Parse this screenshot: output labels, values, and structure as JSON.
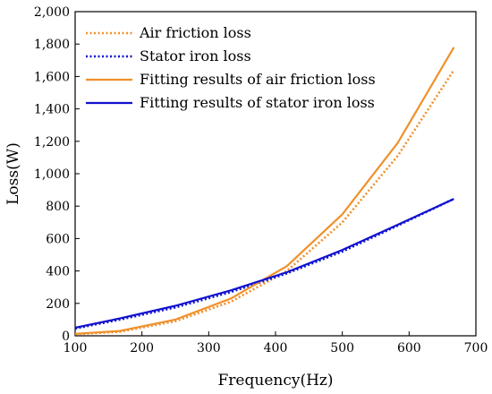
{
  "chart_data": {
    "type": "line",
    "title": "",
    "xlabel": "Frequency(Hz)",
    "ylabel": "Loss(W)",
    "xlim": [
      100,
      700
    ],
    "ylim": [
      0,
      2000
    ],
    "x_ticks": [
      100,
      200,
      300,
      400,
      500,
      600,
      700
    ],
    "y_ticks": [
      0,
      200,
      400,
      600,
      800,
      1000,
      1200,
      1400,
      1600,
      1800,
      2000
    ],
    "y_tick_labels": [
      "0",
      "200",
      "400",
      "600",
      "800",
      "1,000",
      "1,200",
      "1,400",
      "1,600",
      "1,800",
      "2,000"
    ],
    "legend_position": "top-left",
    "grid": false,
    "series": [
      {
        "name": "Air friction loss",
        "color": "#F0902A",
        "style": "dotted",
        "x": [
          100,
          167,
          250,
          333,
          417,
          500,
          583,
          667
        ],
        "y": [
          10,
          25,
          90,
          210,
          400,
          700,
          1110,
          1640
        ]
      },
      {
        "name": "Stator iron loss",
        "color": "#1010D0",
        "style": "dotted",
        "x": [
          100,
          167,
          250,
          333,
          417,
          500,
          583,
          667
        ],
        "y": [
          45,
          100,
          175,
          270,
          385,
          520,
          680,
          845
        ]
      },
      {
        "name": "Fitting results of air friction loss",
        "color": "#F0902A",
        "style": "solid",
        "x": [
          100,
          167,
          250,
          333,
          417,
          500,
          583,
          667
        ],
        "y": [
          12,
          30,
          100,
          230,
          430,
          750,
          1190,
          1780
        ]
      },
      {
        "name": "Fitting results of stator iron loss",
        "color": "#1010D0",
        "style": "solid",
        "x": [
          100,
          167,
          250,
          333,
          417,
          500,
          583,
          667
        ],
        "y": [
          50,
          107,
          185,
          280,
          392,
          530,
          685,
          845
        ]
      }
    ]
  }
}
